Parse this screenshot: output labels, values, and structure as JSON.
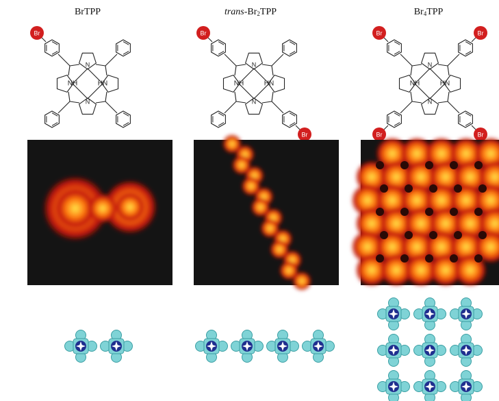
{
  "panels": [
    {
      "title": "BrTPP",
      "title_parts": [],
      "title_html": false
    },
    {
      "title_prefix": "trans",
      "title_suffix": "-Br",
      "title_sub": "2",
      "title_end": "TPP"
    },
    {
      "title_prefix": "",
      "title_suffix": "Br",
      "title_sub": "4",
      "title_end": "TPP"
    }
  ],
  "atoms": {
    "bromine": "Br",
    "nh": "NH",
    "hn": "HN",
    "n": "N"
  },
  "colors": {
    "bromine": "#d21f1f",
    "stm_background": "#141414",
    "stm_low": "#c0140a",
    "stm_mid": "#ff7a10",
    "stm_high": "#ffe84a",
    "model_ring": "#7fd3d6",
    "model_core": "#1f2f8f",
    "model_star": "#ffffff"
  },
  "models": {
    "BrTPP": {
      "units": 2,
      "layout": "dimer"
    },
    "trans-Br2TPP": {
      "units": 4,
      "layout": "chain"
    },
    "Br4TPP": {
      "units": 9,
      "layout": "grid"
    }
  }
}
